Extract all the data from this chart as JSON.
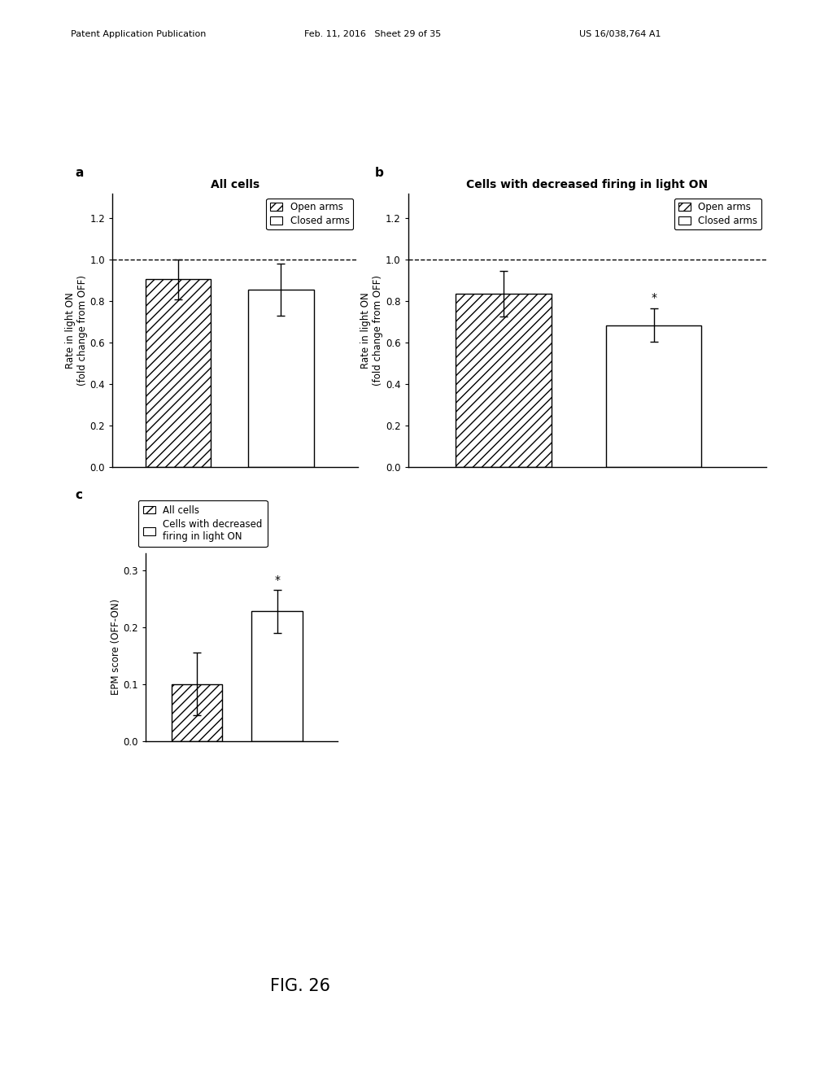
{
  "panel_a": {
    "title": "All cells",
    "bars": [
      {
        "label": "Open arms",
        "value": 0.905,
        "err": 0.095,
        "hatch": "///",
        "color": "white",
        "edgecolor": "black"
      },
      {
        "label": "Closed arms",
        "value": 0.855,
        "err": 0.125,
        "hatch": "",
        "color": "white",
        "edgecolor": "black"
      }
    ],
    "ylabel": "Rate in light ON\n(fold change from OFF)",
    "ylim": [
      0.0,
      1.32
    ],
    "yticks": [
      0.0,
      0.2,
      0.4,
      0.6,
      0.8,
      1.0,
      1.2
    ],
    "dashed_line": 1.0
  },
  "panel_b": {
    "title": "Cells with decreased firing in light ON",
    "bars": [
      {
        "label": "Open arms",
        "value": 0.835,
        "err": 0.11,
        "hatch": "///",
        "color": "white",
        "edgecolor": "black"
      },
      {
        "label": "Closed arms",
        "value": 0.685,
        "err": 0.08,
        "hatch": "",
        "color": "white",
        "edgecolor": "black",
        "star": true
      }
    ],
    "ylabel": "Rate in light ON\n(fold change from OFF)",
    "ylim": [
      0.0,
      1.32
    ],
    "yticks": [
      0.0,
      0.2,
      0.4,
      0.6,
      0.8,
      1.0,
      1.2
    ],
    "dashed_line": 1.0
  },
  "panel_c": {
    "bars": [
      {
        "label": "All cells",
        "value": 0.1,
        "err": 0.055,
        "hatch": "///",
        "color": "white",
        "edgecolor": "black"
      },
      {
        "label": "Cells with decreased\nfiring in light ON",
        "value": 0.228,
        "err": 0.038,
        "hatch": "",
        "color": "white",
        "edgecolor": "black",
        "star": true
      }
    ],
    "ylabel": "EPM score (OFF-ON)",
    "ylim": [
      0.0,
      0.33
    ],
    "yticks": [
      0.0,
      0.1,
      0.2,
      0.3
    ]
  },
  "header_left": "Patent Application Publication",
  "header_mid": "Feb. 11, 2016   Sheet 29 of 35",
  "header_right": "US 16/038,764 A1",
  "fig_label": "FIG. 26",
  "background_color": "#ffffff",
  "bar_width": 0.28,
  "fontsize_title": 10,
  "fontsize_axis": 8.5,
  "fontsize_tick": 8.5,
  "fontsize_legend": 8.5,
  "fontsize_header": 8,
  "fontsize_panel": 11
}
